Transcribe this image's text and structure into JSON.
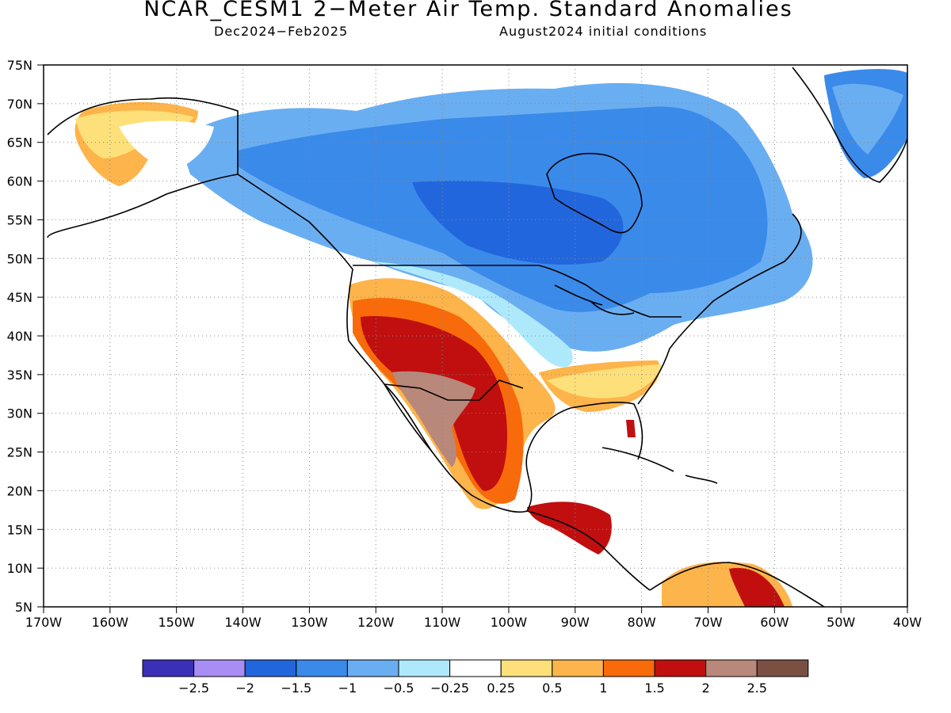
{
  "header": {
    "title": "NCAR_CESM1 2−Meter Air Temp. Standard Anomalies",
    "period": "Dec2024−Feb2025",
    "init": "August2024 initial conditions"
  },
  "map": {
    "lat_ticks": [
      "75N",
      "70N",
      "65N",
      "60N",
      "55N",
      "50N",
      "45N",
      "40N",
      "35N",
      "30N",
      "25N",
      "20N",
      "15N",
      "10N",
      "5N"
    ],
    "lon_ticks": [
      "170W",
      "160W",
      "150W",
      "140W",
      "130W",
      "120W",
      "110W",
      "100W",
      "90W",
      "80W",
      "70W",
      "60W",
      "50W",
      "40W"
    ],
    "extent": {
      "lon_min": -170,
      "lon_max": -40,
      "lat_min": 5,
      "lat_max": 75
    },
    "grid": "dotted",
    "land_color": "#ffffff",
    "coastline_color": "#000000"
  },
  "colorbar": {
    "labels": [
      "−2.5",
      "−2",
      "−1.5",
      "−1",
      "−0.5",
      "−0.25",
      "0.25",
      "0.5",
      "1",
      "1.5",
      "2",
      "2.5"
    ],
    "colors": [
      "#3b2fb8",
      "#a88df5",
      "#2266dd",
      "#3a8aea",
      "#6aaef2",
      "#aee9fb",
      "#ffffff",
      "#fde07a",
      "#fdb44a",
      "#f86a0a",
      "#c10f0f",
      "#b8887a",
      "#7a5042"
    ]
  },
  "anomaly_regions": [
    {
      "name": "alaska-warm",
      "level": "0.5"
    },
    {
      "name": "canada-cold",
      "level": "-1.5"
    },
    {
      "name": "southwest-us-warm",
      "level": "1.5"
    },
    {
      "name": "mexico-warm",
      "level": "2"
    },
    {
      "name": "southeast-us-warm",
      "level": "0.5"
    },
    {
      "name": "greenland-cold",
      "level": "-1"
    },
    {
      "name": "northern-south-america-warm",
      "level": "1.5"
    }
  ]
}
